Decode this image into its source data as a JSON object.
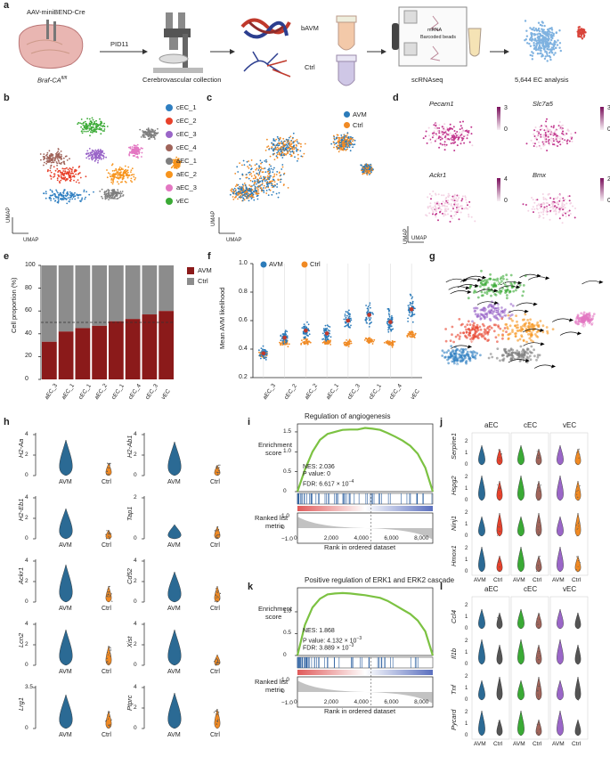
{
  "panels": {
    "a": {
      "label": "a",
      "mouse_label": "AAV-miniBEND-Cre",
      "genotype": "Braf-CA",
      "genotype_sup": "fl/fl",
      "timepoint": "PID11",
      "step2": "Cerebrovascular collection",
      "bavm": "bAVM",
      "ctrl": "Ctrl",
      "mrna": "mRNA",
      "beads": "Barcoded beads",
      "step4": "scRNAseq",
      "step5": "5,644 EC analysis"
    },
    "b": {
      "label": "b",
      "umap_x": "UMAP",
      "umap_y": "UMAP",
      "legend": [
        {
          "name": "cEC_1",
          "color": "#2f7fc1"
        },
        {
          "name": "cEC_2",
          "color": "#e8412b"
        },
        {
          "name": "cEC_3",
          "color": "#9a66c8"
        },
        {
          "name": "cEC_4",
          "color": "#a0645a"
        },
        {
          "name": "aEC_1",
          "color": "#7f7f7f"
        },
        {
          "name": "aEC_2",
          "color": "#f7941d"
        },
        {
          "name": "aEC_3",
          "color": "#e377c2"
        },
        {
          "name": "vEC",
          "color": "#3aaa35"
        }
      ]
    },
    "c": {
      "label": "c",
      "umap_x": "UMAP",
      "umap_y": "UMAP",
      "legend": [
        {
          "name": "AVM",
          "color": "#2b7bba"
        },
        {
          "name": "Ctrl",
          "color": "#f08a24"
        }
      ]
    },
    "d": {
      "label": "d",
      "umap_x": "UMAP",
      "umap_y": "UMAP",
      "genes": [
        {
          "name": "Pecam1",
          "max": "3",
          "min": "0"
        },
        {
          "name": "Slc7a5",
          "max": "3",
          "min": "0"
        },
        {
          "name": "Ackr1",
          "max": "4",
          "min": "0"
        },
        {
          "name": "Bmx",
          "max": "2",
          "min": "0"
        }
      ]
    },
    "e": {
      "label": "e",
      "ylabel": "Cell proportion (%)"
    },
    "f": {
      "label": "f",
      "ylabel": "Mean AVM likelihood"
    },
    "g": {
      "label": "g",
      "labels": [
        "vEC",
        "cEC_3",
        "cEC_2",
        "aEC_1",
        "aEC_3",
        "cEC_1"
      ]
    },
    "h": {
      "label": "h"
    },
    "i": {
      "label": "i",
      "title": "Regulation of angiogenesis",
      "ylabel1": "Enrichment",
      "ylabel2": "score",
      "nes": "NES: 2.036",
      "pval": "P value: 0",
      "fdr": "FDR: 6.617 × 10",
      "fdr_exp": "−4",
      "rlabel1": "Ranked list",
      "rlabel2": "metric",
      "xlabel": "Rank in ordered dataset"
    },
    "j": {
      "label": "j",
      "groups": [
        "aEC",
        "cEC",
        "vEC"
      ],
      "genes": [
        "Serpine1",
        "Hspg2",
        "Ninj1",
        "Hmox1"
      ],
      "x": [
        "AVM",
        "Ctrl"
      ]
    },
    "k": {
      "label": "k",
      "title": "Positive regulation of ERK1 and ERK2 cascade",
      "ylabel1": "Enrichment",
      "ylabel2": "score",
      "nes": "NES: 1.868",
      "pval": "P value: 4.132 × 10",
      "pval_exp": "−3",
      "fdr": "FDR: 3.889 × 10",
      "fdr_exp": "−3",
      "rlabel1": "Ranked list",
      "rlabel2": "metric",
      "xlabel": "Rank in ordered dataset"
    },
    "l": {
      "label": "l",
      "groups": [
        "aEC",
        "cEC",
        "vEC"
      ],
      "genes": [
        "Ccl4",
        "Il1b",
        "Tnf",
        "Pycard"
      ],
      "x": [
        "AVM",
        "Ctrl"
      ]
    }
  },
  "chart_data": [
    {
      "panel": "e",
      "type": "bar",
      "categories": [
        "aEC_3",
        "aEC_1",
        "cEC_1",
        "aEC_2",
        "cEC_1",
        "cEC_4",
        "cEC_3",
        "vEC"
      ],
      "series": [
        {
          "name": "AVM",
          "color": "#8b1a1a",
          "values": [
            33,
            42,
            45,
            47,
            51,
            53,
            57,
            60
          ]
        },
        {
          "name": "Ctrl",
          "color": "#8c8c8c",
          "values": [
            67,
            58,
            55,
            53,
            49,
            47,
            43,
            40
          ]
        }
      ],
      "ylabel": "Cell proportion (%)",
      "ylim": [
        0,
        100
      ],
      "yticks": [
        "0",
        "20",
        "40",
        "60",
        "80",
        "100"
      ],
      "reference_line": 50,
      "legend": "top-right"
    },
    {
      "panel": "f",
      "type": "scatter",
      "categories": [
        "aEC_3",
        "cEC_2",
        "aEC_2",
        "aEC_1",
        "cEC_3",
        "cEC_1",
        "cEC_4",
        "vEC"
      ],
      "series": [
        {
          "name": "AVM",
          "color": "#2b7bba",
          "means": [
            0.37,
            0.48,
            0.53,
            0.51,
            0.6,
            0.64,
            0.59,
            0.68
          ]
        },
        {
          "name": "Ctrl",
          "color": "#f08a24",
          "means": [
            0.36,
            0.44,
            0.45,
            0.45,
            0.44,
            0.46,
            0.44,
            0.5
          ]
        }
      ],
      "ylabel": "Mean AVM likelihood",
      "ylim": [
        0.2,
        1.0
      ],
      "yticks": [
        "0.2",
        "0.4",
        "0.6",
        "0.8",
        "1.0"
      ],
      "legend": "top"
    },
    {
      "panel": "h",
      "type": "violin",
      "genes": [
        {
          "name": "H2-Aa",
          "yticks": [
            "0",
            "2",
            "4"
          ]
        },
        {
          "name": "H2-Ab1",
          "yticks": [
            "0",
            "2",
            "4"
          ]
        },
        {
          "name": "H2-Eb1",
          "yticks": [
            "0",
            "2",
            "4"
          ]
        },
        {
          "name": "Tap1",
          "yticks": [
            "0",
            "2"
          ]
        },
        {
          "name": "Ackr1",
          "yticks": [
            "0",
            "2",
            "4"
          ]
        },
        {
          "name": "Cd52",
          "yticks": [
            "0",
            "2",
            "4"
          ]
        },
        {
          "name": "Lcn2",
          "yticks": [
            "0",
            "2",
            "4"
          ]
        },
        {
          "name": "Xist",
          "yticks": [
            "0",
            "2",
            "4"
          ]
        },
        {
          "name": "Lrg1",
          "yticks": [
            "0",
            "3.5"
          ]
        },
        {
          "name": "Ptprc",
          "yticks": [
            "0",
            "2",
            "4"
          ]
        }
      ],
      "categories": [
        "AVM",
        "Ctrl"
      ],
      "colors": [
        "#2b6a94",
        "#f08a24"
      ]
    },
    {
      "panel": "i",
      "type": "line",
      "title": "Regulation of angiogenesis",
      "x": [
        0,
        500,
        1000,
        1500,
        2000,
        2500,
        3000,
        3500,
        4000,
        4500,
        5000,
        5500,
        6000,
        6500,
        7000,
        7500,
        8000,
        8500,
        9000
      ],
      "y": [
        0,
        0.55,
        1.0,
        1.3,
        1.45,
        1.5,
        1.55,
        1.56,
        1.56,
        1.6,
        1.58,
        1.55,
        1.47,
        1.38,
        1.28,
        1.15,
        0.95,
        0.6,
        0
      ],
      "xticks": [
        "0",
        "2,000",
        "4,000",
        "6,000",
        "8,000"
      ],
      "yticks": [
        "1.5",
        "1.0",
        "0.5",
        "0"
      ],
      "rank_yticks": [
        "1.0",
        "0",
        "−1.0"
      ],
      "xlabel": "Rank in ordered dataset",
      "ylabel": "Enrichment score",
      "series_color": "#7cc242",
      "nes": 2.036,
      "p_value": 0,
      "fdr": "6.617e-4"
    },
    {
      "panel": "k",
      "type": "line",
      "title": "Positive regulation of ERK1 and ERK2 cascade",
      "x": [
        0,
        500,
        1000,
        1500,
        2000,
        2500,
        3000,
        3500,
        4000,
        4500,
        5000,
        5500,
        6000,
        6500,
        7000,
        7500,
        8000,
        8500,
        9000
      ],
      "y": [
        0,
        0.7,
        1.1,
        1.3,
        1.4,
        1.42,
        1.43,
        1.42,
        1.4,
        1.38,
        1.35,
        1.32,
        1.25,
        1.15,
        1.05,
        0.95,
        0.8,
        0.55,
        0
      ],
      "xticks": [
        "0",
        "2,000",
        "4,000",
        "6,000",
        "8,000"
      ],
      "yticks": [
        "1.0",
        "0.5",
        "0"
      ],
      "rank_yticks": [
        "1.0",
        "0",
        "−1.0"
      ],
      "xlabel": "Rank in ordered dataset",
      "ylabel": "Enrichment score",
      "series_color": "#7cc242",
      "nes": 1.868,
      "p_value": "4.132e-3",
      "fdr": "3.889e-3"
    },
    {
      "panel": "j",
      "type": "violin",
      "groups": [
        "aEC",
        "cEC",
        "vEC"
      ],
      "genes": [
        "Serpine1",
        "Hspg2",
        "Ninj1",
        "Hmox1"
      ],
      "yticks": [
        "0",
        "1",
        "2",
        "3"
      ],
      "categories": [
        "AVM",
        "Ctrl"
      ],
      "colors": [
        "#2b6a94",
        "#e8412b",
        "#3aaa35",
        "#a0645a",
        "#9a66c8",
        "#f08a24"
      ]
    },
    {
      "panel": "l",
      "type": "violin",
      "groups": [
        "aEC",
        "cEC",
        "vEC"
      ],
      "genes": [
        "Ccl4",
        "Il1b",
        "Tnf",
        "Pycard"
      ],
      "yticks": [
        "0",
        "1",
        "2",
        "3"
      ],
      "categories": [
        "AVM",
        "Ctrl"
      ],
      "colors": [
        "#2b6a94",
        "#555555",
        "#3aaa35",
        "#a0645a",
        "#9a66c8",
        "#555555"
      ]
    }
  ]
}
